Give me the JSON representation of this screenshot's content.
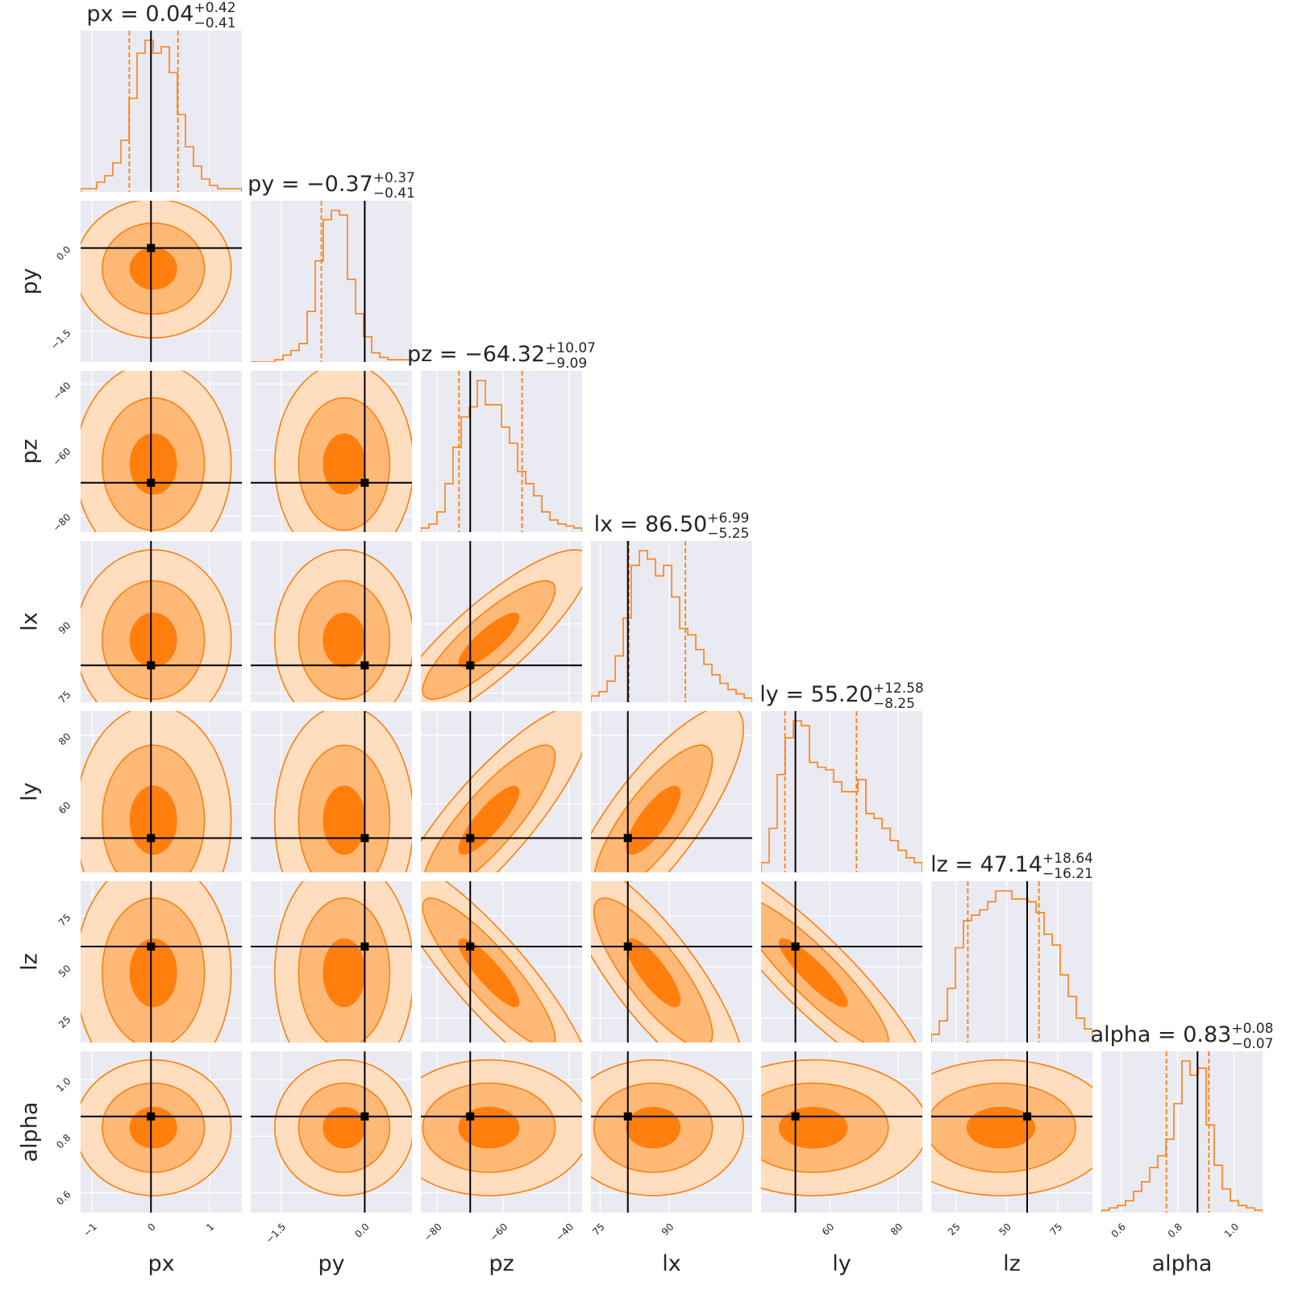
{
  "chart_data": {
    "type": "corner",
    "colors": {
      "panel_bg": "#EAEAF2",
      "grid": "#ffffff",
      "line": "#FF7F0E",
      "fill_1sigma": "#FF7F0E",
      "fill_2sigma": "#FFB977",
      "fill_3sigma": "#FFDDBF",
      "truth": "#000000",
      "text": "#262626"
    },
    "parameters": [
      {
        "name": "px",
        "range": [
          -1.2,
          1.55
        ],
        "truth": 0.0,
        "ticks": [
          -1,
          0,
          1
        ],
        "tick_labels": [
          "−1",
          "0",
          "1"
        ],
        "median": 0.04,
        "plus": 0.42,
        "minus": 0.41,
        "title_value": "0.04",
        "title_plus": "+0.42",
        "title_minus": "−0.41",
        "hist": [
          1,
          1,
          3,
          5,
          9,
          16,
          29,
          43,
          47,
          43,
          45,
          37,
          24,
          14,
          8,
          4,
          2,
          1,
          1,
          1
        ]
      },
      {
        "name": "py",
        "range": [
          -2.05,
          0.85
        ],
        "truth": 0.0,
        "ticks": [
          -1.5,
          0.0
        ],
        "tick_labels": [
          "−1.5",
          "0.0"
        ],
        "median": -0.37,
        "plus": 0.37,
        "minus": 0.41,
        "title_value": "−0.37",
        "title_plus": "+0.37",
        "title_minus": "−0.41",
        "hist": [
          0,
          0,
          0,
          1,
          3,
          5,
          8,
          22,
          44,
          62,
          66,
          64,
          36,
          21,
          11,
          4,
          2,
          1,
          1,
          1
        ]
      },
      {
        "name": "pz",
        "range": [
          -85,
          -36
        ],
        "truth": -70,
        "ticks": [
          -80,
          -60,
          -40
        ],
        "tick_labels": [
          "−80",
          "−60",
          "−40"
        ],
        "median": -64.32,
        "plus": 10.07,
        "minus": 9.09,
        "title_value": "−64.32",
        "title_plus": "+10.07",
        "title_minus": "−9.09",
        "hist": [
          2,
          4,
          10,
          24,
          42,
          57,
          62,
          75,
          63,
          63,
          52,
          44,
          30,
          24,
          18,
          10,
          6,
          4,
          3,
          2
        ]
      },
      {
        "name": "lx",
        "range": [
          73,
          108
        ],
        "truth": 81,
        "ticks": [
          75,
          90
        ],
        "tick_labels": [
          "75",
          "90"
        ],
        "median": 86.5,
        "plus": 6.99,
        "minus": 5.25,
        "title_value": "86.50",
        "title_plus": "+6.99",
        "title_minus": "−5.25",
        "hist": [
          3,
          5,
          10,
          22,
          40,
          65,
          72,
          68,
          60,
          65,
          50,
          35,
          32,
          25,
          18,
          13,
          9,
          6,
          4,
          2
        ]
      },
      {
        "name": "ly",
        "range": [
          40,
          87
        ],
        "truth": 50,
        "ticks": [
          60,
          80
        ],
        "tick_labels": [
          "60",
          "80"
        ],
        "median": 55.2,
        "plus": 12.58,
        "minus": 8.25,
        "title_value": "55.20",
        "title_plus": "+12.58",
        "title_minus": "−8.25",
        "hist": [
          4,
          18,
          40,
          55,
          62,
          60,
          45,
          43,
          42,
          37,
          33,
          33,
          38,
          24,
          22,
          18,
          13,
          9,
          6,
          4
        ]
      },
      {
        "name": "lz",
        "range": [
          13,
          92
        ],
        "truth": 60,
        "ticks": [
          25,
          50,
          75
        ],
        "tick_labels": [
          "25",
          "50",
          "75"
        ],
        "median": 47.14,
        "plus": 18.64,
        "minus": 16.21,
        "title_value": "47.14",
        "title_plus": "+18.64",
        "title_minus": "−16.21",
        "hist": [
          3,
          8,
          20,
          35,
          45,
          47,
          49,
          52,
          56,
          56,
          53,
          53,
          52,
          48,
          40,
          36,
          25,
          17,
          9,
          5
        ]
      },
      {
        "name": "alpha",
        "range": [
          0.53,
          1.1
        ],
        "truth": 0.87,
        "ticks": [
          0.6,
          0.8,
          1.0
        ],
        "tick_labels": [
          "0.6",
          "0.8",
          "1.0"
        ],
        "median": 0.83,
        "plus": 0.08,
        "minus": 0.07,
        "title_value": "0.83",
        "title_plus": "+0.08",
        "title_minus": "−0.07",
        "hist": [
          1,
          2,
          3,
          5,
          9,
          13,
          19,
          24,
          31,
          46,
          64,
          58,
          61,
          37,
          20,
          10,
          5,
          3,
          2,
          1
        ]
      }
    ],
    "correlation": {
      "pz|lx": 0.85,
      "pz|ly": 0.85,
      "lx|ly": 0.8,
      "pz|lz": -0.88,
      "lx|lz": -0.82,
      "ly|lz": -0.9
    }
  }
}
